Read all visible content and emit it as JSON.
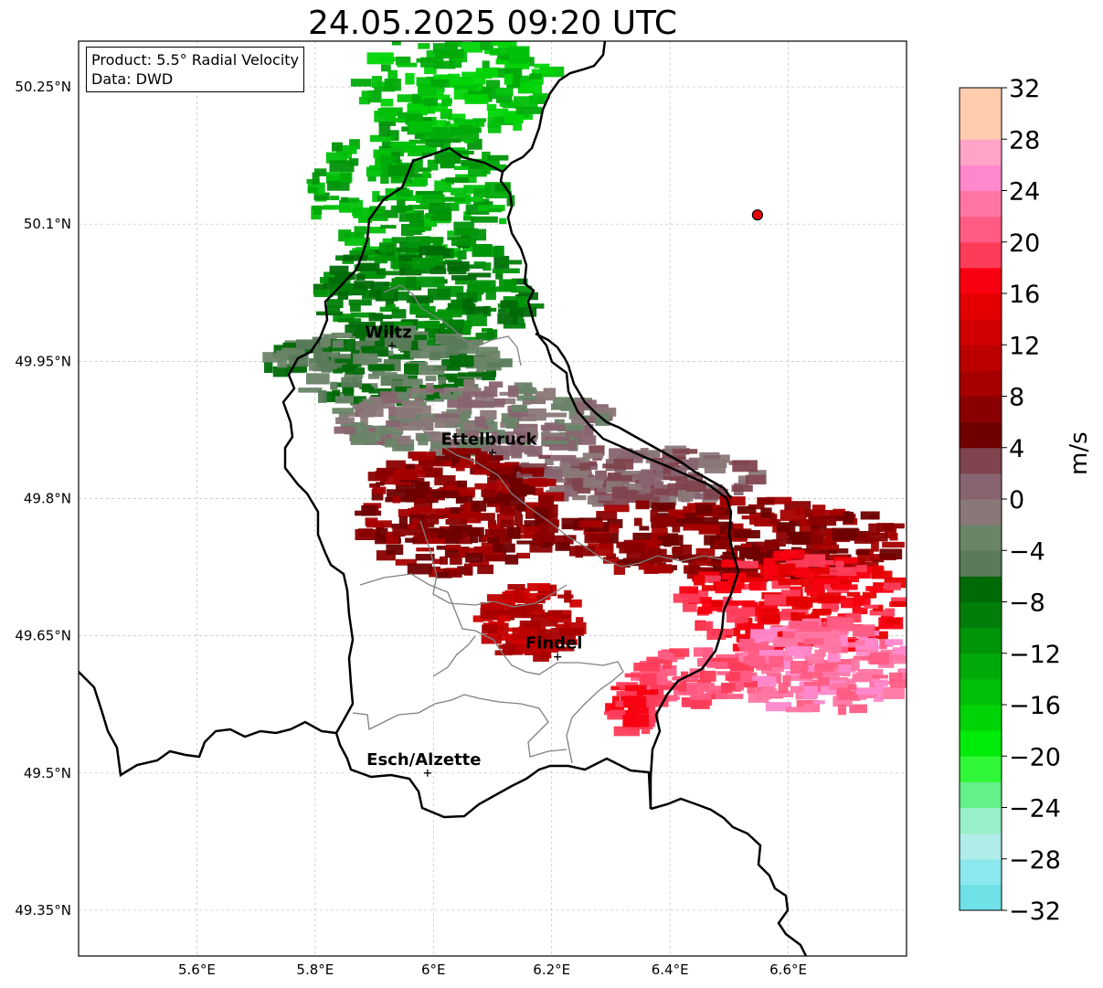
{
  "title": "24.05.2025 09:20 UTC",
  "infobox": {
    "product": "Product: 5.5° Radial Velocity",
    "source": "Data: DWD"
  },
  "map": {
    "lon_range": [
      5.4,
      6.8
    ],
    "lat_range": [
      49.3,
      50.3
    ],
    "lon_ticks": [
      {
        "value": 5.6,
        "label": "5.6°E"
      },
      {
        "value": 5.8,
        "label": "5.8°E"
      },
      {
        "value": 6.0,
        "label": "6°E"
      },
      {
        "value": 6.2,
        "label": "6.2°E"
      },
      {
        "value": 6.4,
        "label": "6.4°E"
      },
      {
        "value": 6.6,
        "label": "6.6°E"
      }
    ],
    "lat_ticks": [
      {
        "value": 50.25,
        "label": "50.25°N"
      },
      {
        "value": 50.1,
        "label": "50.1°N"
      },
      {
        "value": 49.95,
        "label": "49.95°N"
      },
      {
        "value": 49.8,
        "label": "49.8°N"
      },
      {
        "value": 49.65,
        "label": "49.65°N"
      },
      {
        "value": 49.5,
        "label": "49.5°N"
      },
      {
        "value": 49.35,
        "label": "49.35°N"
      }
    ],
    "cities": [
      {
        "name": "Wiltz",
        "lon": 5.93,
        "lat": 49.967
      },
      {
        "name": "Ettelbruck",
        "lon": 6.1,
        "lat": 49.85
      },
      {
        "name": "Findel",
        "lon": 6.21,
        "lat": 49.627
      },
      {
        "name": "Esch/Alzette",
        "lon": 5.99,
        "lat": 49.5
      }
    ],
    "radar_site": {
      "lon": 6.548,
      "lat": 50.11
    },
    "colors": {
      "border": "#000000",
      "canton": "#808080",
      "grid": "#c0c0c0",
      "radar_site": "#e8000b"
    }
  },
  "colorbar": {
    "unit": "m/s",
    "min": -32,
    "max": 32,
    "tick_labels": [
      "−32",
      "−28",
      "−24",
      "−20",
      "−16",
      "−12",
      "−8",
      "−4",
      "0",
      "4",
      "8",
      "12",
      "16",
      "20",
      "24",
      "28",
      "32"
    ],
    "colors": [
      "#6ee0e6",
      "#8ae8ee",
      "#b0ece8",
      "#98f0c8",
      "#64f08a",
      "#30f838",
      "#00ec08",
      "#00d406",
      "#00c008",
      "#00aa08",
      "#009408",
      "#007e08",
      "#006a06",
      "#5a7a5a",
      "#6a8468",
      "#8a7878",
      "#886470",
      "#80444e",
      "#6e0000",
      "#8a0000",
      "#a60000",
      "#bc0000",
      "#d00000",
      "#e40000",
      "#f80010",
      "#fc3c58",
      "#ff5c84",
      "#ff76a4",
      "#ff88cc",
      "#ffa4c8",
      "#ffcdae",
      "#ffcdae"
    ]
  }
}
